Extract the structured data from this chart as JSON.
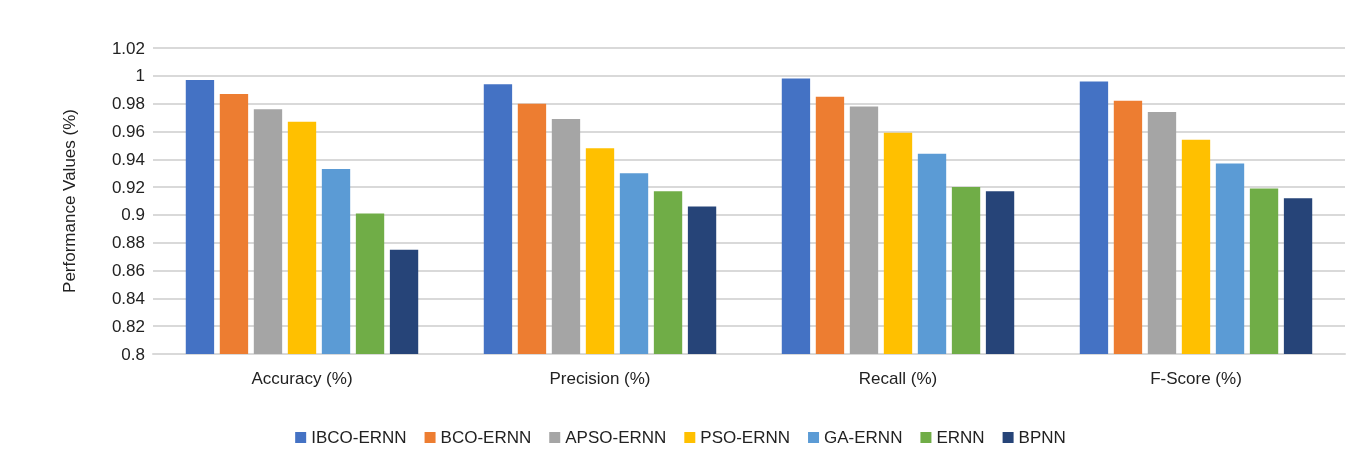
{
  "chart_data": {
    "type": "bar",
    "ylabel": "Performance Values (%)",
    "categories": [
      "Accuracy (%)",
      "Precision (%)",
      "Recall (%)",
      "F-Score (%)"
    ],
    "series": [
      {
        "name": "IBCO-ERNN",
        "color": "#4472c4",
        "values": [
          0.997,
          0.994,
          0.998,
          0.996
        ]
      },
      {
        "name": "BCO-ERNN",
        "color": "#ed7d31",
        "values": [
          0.987,
          0.98,
          0.985,
          0.982
        ]
      },
      {
        "name": "APSO-ERNN",
        "color": "#a5a5a5",
        "values": [
          0.976,
          0.969,
          0.978,
          0.974
        ]
      },
      {
        "name": "PSO-ERNN",
        "color": "#ffc000",
        "values": [
          0.967,
          0.948,
          0.959,
          0.954
        ]
      },
      {
        "name": "GA-ERNN",
        "color": "#5b9bd5",
        "values": [
          0.933,
          0.93,
          0.944,
          0.937
        ]
      },
      {
        "name": "ERNN",
        "color": "#70ad47",
        "values": [
          0.901,
          0.917,
          0.92,
          0.919
        ]
      },
      {
        "name": "BPNN",
        "color": "#264478",
        "values": [
          0.875,
          0.906,
          0.917,
          0.912
        ]
      }
    ],
    "ylim": [
      0.8,
      1.02
    ],
    "yticks": [
      0.8,
      0.82,
      0.84,
      0.86,
      0.88,
      0.9,
      0.92,
      0.94,
      0.96,
      0.98,
      1,
      1.02
    ],
    "grid": "y",
    "legend": "bottom"
  }
}
